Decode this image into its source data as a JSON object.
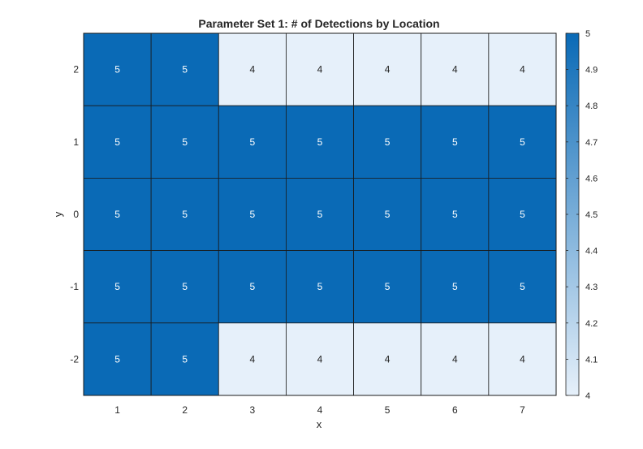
{
  "chart_data": {
    "type": "heatmap",
    "title": "Parameter Set 1: # of Detections by Location",
    "xlabel": "x",
    "ylabel": "y",
    "x_categories": [
      "1",
      "2",
      "3",
      "4",
      "5",
      "6",
      "7"
    ],
    "y_categories": [
      "2",
      "1",
      "0",
      "-1",
      "-2"
    ],
    "values": [
      [
        5,
        5,
        4,
        4,
        4,
        4,
        4
      ],
      [
        5,
        5,
        5,
        5,
        5,
        5,
        5
      ],
      [
        5,
        5,
        5,
        5,
        5,
        5,
        5
      ],
      [
        5,
        5,
        5,
        5,
        5,
        5,
        5
      ],
      [
        5,
        5,
        4,
        4,
        4,
        4,
        4
      ]
    ],
    "color_range": [
      4,
      5
    ],
    "colormap": {
      "low": "#e6f0fa",
      "high": "#0a6ab6"
    },
    "cell_text_color_high": "#ffffff",
    "cell_text_color_low": "#222222",
    "colorbar_ticks": [
      "4",
      "4.1",
      "4.2",
      "4.3",
      "4.4",
      "4.5",
      "4.6",
      "4.7",
      "4.8",
      "4.9",
      "5"
    ],
    "colorbar_location": "right"
  }
}
